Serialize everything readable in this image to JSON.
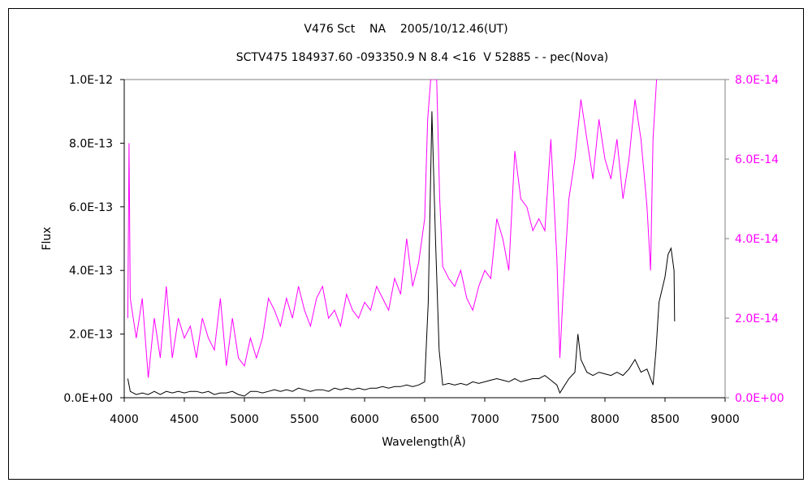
{
  "chart_data": {
    "type": "line",
    "title": "V476 Sct    NA    2005/10/12.46(UT)",
    "subtitle": "SCTV475 184937.60 -093350.9 N 8.4 <16  V 52885 - - pec(Nova)",
    "xlabel": "Wavelength(Å)",
    "ylabel": "Flux",
    "xlim": [
      4000,
      9000
    ],
    "xticks": [
      "4000",
      "4500",
      "5000",
      "5500",
      "6000",
      "6500",
      "7000",
      "7500",
      "8000",
      "8500",
      "9000"
    ],
    "ylim_left": [
      0,
      1e-12
    ],
    "yticks_left": [
      "0.0E+00",
      "2.0E-13",
      "4.0E-13",
      "6.0E-13",
      "8.0E-13",
      "1.0E-12"
    ],
    "ylim_right": [
      0,
      8e-14
    ],
    "yticks_right": [
      "0.0E+00",
      "2.0E-14",
      "4.0E-14",
      "6.0E-14",
      "8.0E-14"
    ],
    "grid": false,
    "legend": "none",
    "colors": {
      "left_series": "#000000",
      "right_series": "#ff00ff",
      "right_axis_labels": "#ff00ff"
    },
    "series": [
      {
        "axis": "left",
        "color": "#000000",
        "unit_scale": 1e-13,
        "x": [
          4030,
          4050,
          4100,
          4150,
          4200,
          4250,
          4300,
          4350,
          4400,
          4450,
          4500,
          4550,
          4600,
          4650,
          4700,
          4750,
          4800,
          4850,
          4900,
          4950,
          5000,
          5050,
          5100,
          5150,
          5200,
          5250,
          5300,
          5350,
          5400,
          5450,
          5500,
          5550,
          5600,
          5650,
          5700,
          5750,
          5800,
          5850,
          5900,
          5950,
          6000,
          6050,
          6100,
          6150,
          6200,
          6250,
          6300,
          6350,
          6400,
          6450,
          6500,
          6530,
          6560,
          6590,
          6620,
          6650,
          6700,
          6750,
          6800,
          6850,
          6900,
          6950,
          7000,
          7050,
          7100,
          7150,
          7200,
          7250,
          7300,
          7350,
          7400,
          7450,
          7500,
          7550,
          7600,
          7625,
          7650,
          7700,
          7750,
          7775,
          7800,
          7850,
          7900,
          7950,
          8000,
          8050,
          8100,
          8150,
          8200,
          8250,
          8300,
          8350,
          8400,
          8425,
          8450,
          8500,
          8525,
          8550,
          8575,
          8580
        ],
        "y": [
          0.6,
          0.2,
          0.1,
          0.15,
          0.1,
          0.2,
          0.1,
          0.2,
          0.15,
          0.2,
          0.15,
          0.2,
          0.2,
          0.15,
          0.2,
          0.1,
          0.15,
          0.15,
          0.2,
          0.1,
          0.05,
          0.2,
          0.2,
          0.15,
          0.2,
          0.25,
          0.2,
          0.25,
          0.2,
          0.3,
          0.25,
          0.2,
          0.25,
          0.25,
          0.2,
          0.3,
          0.25,
          0.3,
          0.25,
          0.3,
          0.25,
          0.3,
          0.3,
          0.35,
          0.3,
          0.35,
          0.35,
          0.4,
          0.35,
          0.4,
          0.5,
          3.0,
          9.0,
          5.0,
          1.5,
          0.4,
          0.45,
          0.4,
          0.45,
          0.4,
          0.5,
          0.45,
          0.5,
          0.55,
          0.6,
          0.55,
          0.5,
          0.6,
          0.5,
          0.55,
          0.6,
          0.6,
          0.7,
          0.55,
          0.4,
          0.15,
          0.3,
          0.6,
          0.8,
          2.0,
          1.2,
          0.8,
          0.7,
          0.8,
          0.75,
          0.7,
          0.8,
          0.7,
          0.9,
          1.2,
          0.8,
          0.9,
          0.4,
          1.5,
          3.0,
          3.8,
          4.5,
          4.7,
          4.0,
          2.4
        ]
      },
      {
        "axis": "right",
        "color": "#ff00ff",
        "unit_scale": 1e-14,
        "x": [
          4030,
          4040,
          4050,
          4100,
          4150,
          4200,
          4250,
          4300,
          4350,
          4400,
          4450,
          4500,
          4550,
          4600,
          4650,
          4700,
          4750,
          4800,
          4850,
          4900,
          4950,
          5000,
          5050,
          5100,
          5150,
          5200,
          5250,
          5300,
          5350,
          5400,
          5450,
          5500,
          5550,
          5600,
          5650,
          5700,
          5750,
          5800,
          5850,
          5900,
          5950,
          6000,
          6050,
          6100,
          6150,
          6200,
          6250,
          6300,
          6350,
          6400,
          6450,
          6500,
          6525,
          6550,
          6600,
          6625,
          6650,
          6700,
          6750,
          6800,
          6850,
          6900,
          6950,
          7000,
          7050,
          7100,
          7150,
          7200,
          7250,
          7300,
          7350,
          7400,
          7450,
          7500,
          7550,
          7600,
          7625,
          7650,
          7700,
          7750,
          7800,
          7850,
          7900,
          7950,
          8000,
          8050,
          8100,
          8150,
          8200,
          8250,
          8300,
          8350,
          8380,
          8400,
          8430
        ],
        "y": [
          2,
          6.4,
          2.5,
          1.5,
          2.5,
          0.5,
          2,
          1,
          2.8,
          1,
          2,
          1.5,
          1.8,
          1,
          2,
          1.5,
          1.2,
          2.5,
          0.8,
          2,
          1,
          0.8,
          1.5,
          1,
          1.5,
          2.5,
          2.2,
          1.8,
          2.5,
          2,
          2.8,
          2.2,
          1.8,
          2.5,
          2.8,
          2,
          2.2,
          1.8,
          2.6,
          2.2,
          2,
          2.4,
          2.2,
          2.8,
          2.5,
          2.2,
          3,
          2.6,
          4,
          2.8,
          3.4,
          4.5,
          7,
          8,
          8,
          5,
          3.3,
          3,
          2.8,
          3.2,
          2.5,
          2.2,
          2.8,
          3.2,
          3,
          4.5,
          4,
          3.2,
          6.2,
          5,
          4.8,
          4.2,
          4.5,
          4.2,
          6.5,
          3.5,
          1,
          2.5,
          5,
          6,
          7.5,
          6.5,
          5.5,
          7,
          6,
          5.5,
          6.5,
          5,
          6,
          7.5,
          6.5,
          4.8,
          3.2,
          6.5,
          8
        ]
      }
    ]
  }
}
